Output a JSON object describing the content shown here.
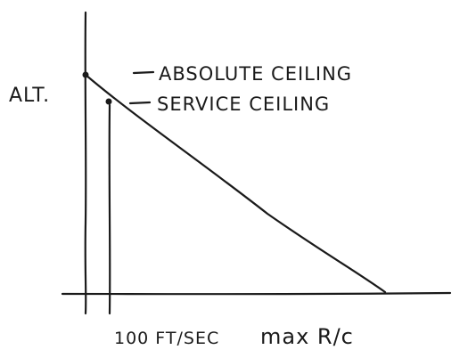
{
  "diagram": {
    "y_axis_label": "ALT.",
    "x_axis_label": "max R/c",
    "x_tick_label": "100 FT/SEC",
    "annotations": {
      "absolute_ceiling": "ABSOLUTE CEILING",
      "service_ceiling": "SERVICE CEILING"
    },
    "ink_color": "#1a1a1a"
  }
}
